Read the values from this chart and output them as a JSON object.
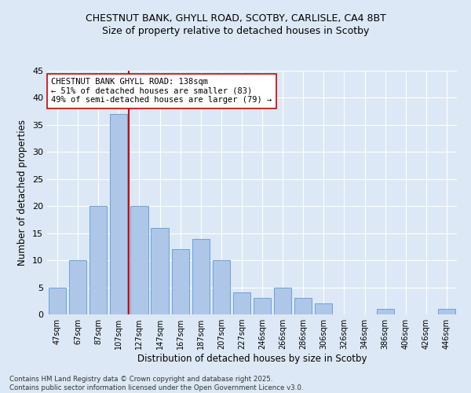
{
  "title_line1": "CHESTNUT BANK, GHYLL ROAD, SCOTBY, CARLISLE, CA4 8BT",
  "title_line2": "Size of property relative to detached houses in Scotby",
  "xlabel": "Distribution of detached houses by size in Scotby",
  "ylabel": "Number of detached properties",
  "categories": [
    "47sqm",
    "67sqm",
    "87sqm",
    "107sqm",
    "127sqm",
    "147sqm",
    "167sqm",
    "187sqm",
    "207sqm",
    "227sqm",
    "246sqm",
    "266sqm",
    "286sqm",
    "306sqm",
    "326sqm",
    "346sqm",
    "386sqm",
    "406sqm",
    "426sqm",
    "446sqm"
  ],
  "values": [
    5,
    10,
    20,
    37,
    20,
    16,
    12,
    14,
    10,
    4,
    3,
    5,
    3,
    2,
    0,
    0,
    1,
    0,
    0,
    1
  ],
  "bar_color": "#aec6e8",
  "bar_edge_color": "#5b9bd5",
  "vline_x": 3.5,
  "vline_color": "#cc0000",
  "annotation_text": "CHESTNUT BANK GHYLL ROAD: 138sqm\n← 51% of detached houses are smaller (83)\n49% of semi-detached houses are larger (79) →",
  "annotation_box_color": "#ffffff",
  "annotation_box_edge": "#cc0000",
  "ylim": [
    0,
    45
  ],
  "yticks": [
    0,
    5,
    10,
    15,
    20,
    25,
    30,
    35,
    40,
    45
  ],
  "background_color": "#dce8f5",
  "footer": "Contains HM Land Registry data © Crown copyright and database right 2025.\nContains public sector information licensed under the Open Government Licence v3.0.",
  "title_fontsize": 9,
  "subtitle_fontsize": 9,
  "tick_fontsize": 7,
  "axis_label_fontsize": 8.5,
  "annot_fontsize": 7.5
}
